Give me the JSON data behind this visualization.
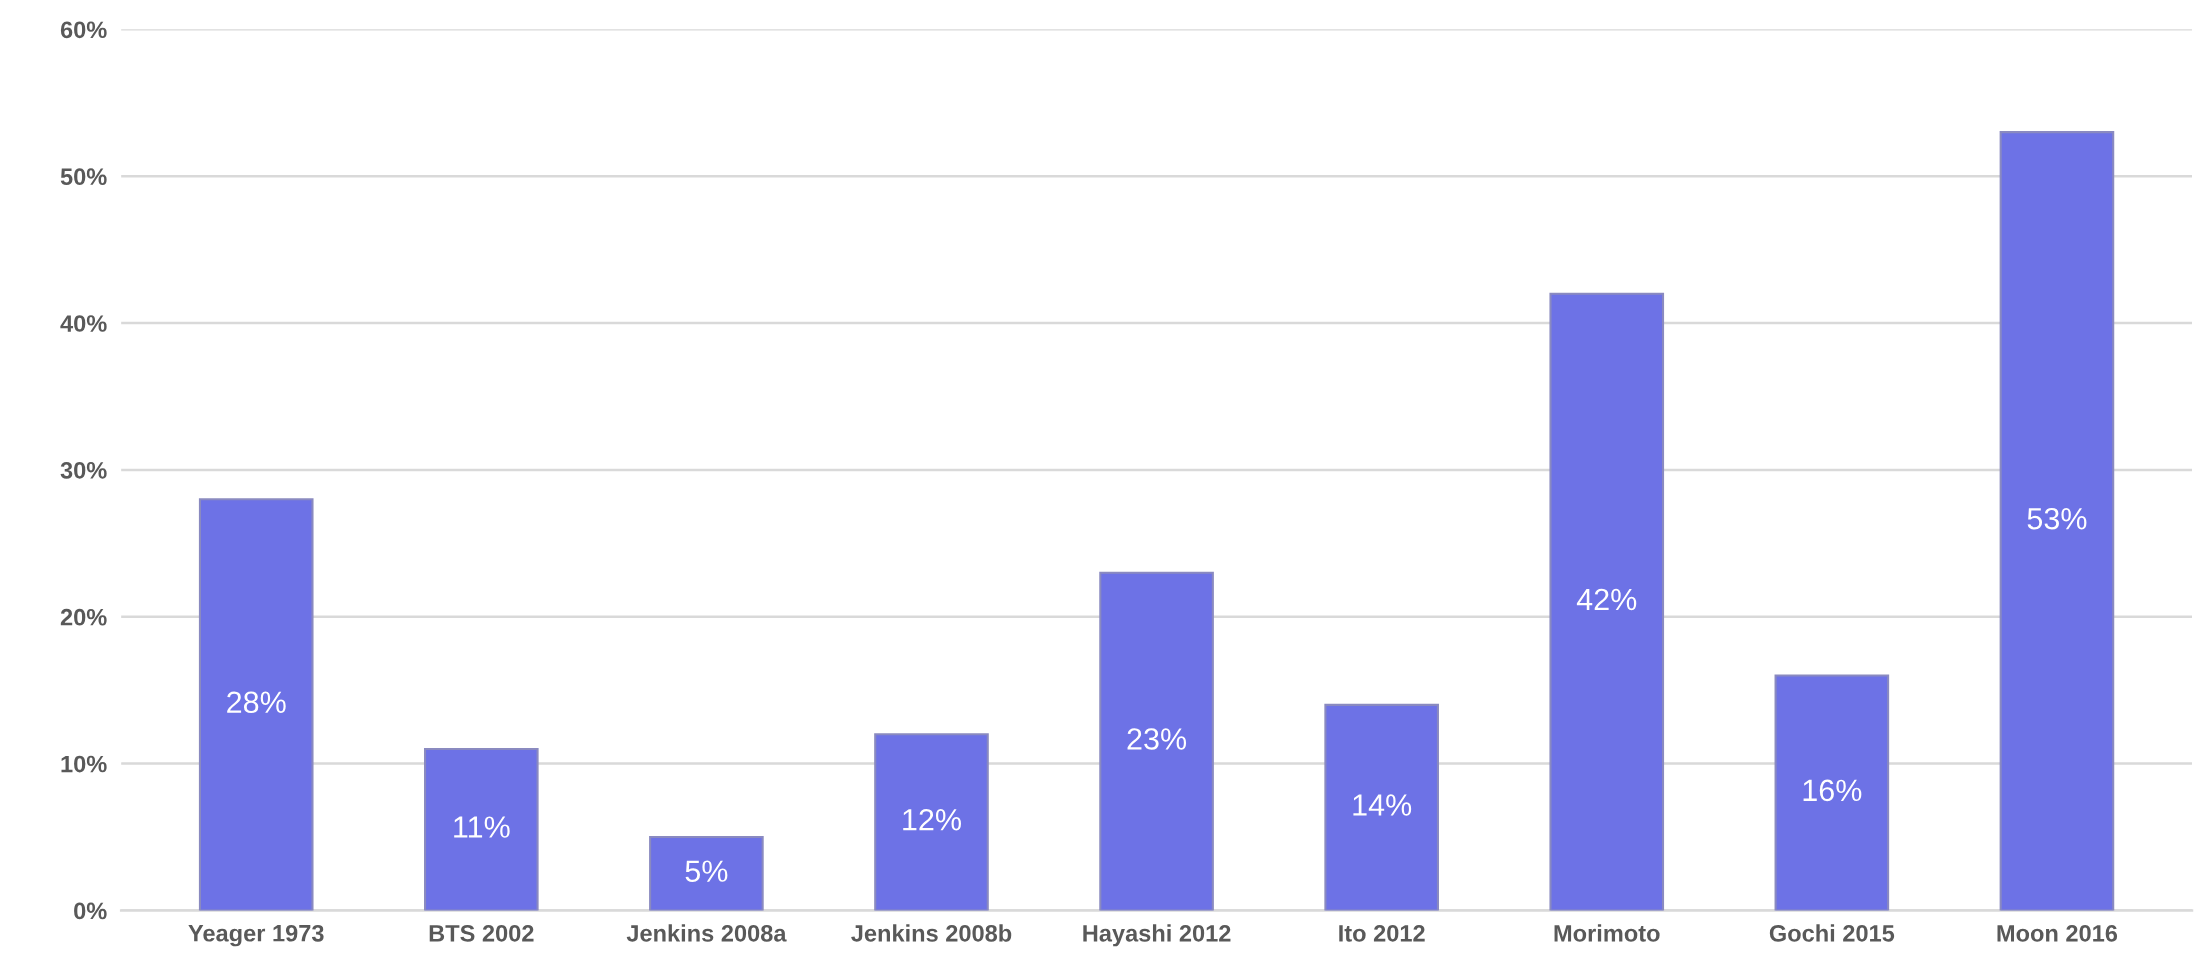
{
  "chart_data": {
    "type": "bar",
    "categories": [
      "Yeager 1973",
      "BTS 2002",
      "Jenkins 2008a",
      "Jenkins 2008b",
      "Hayashi 2012",
      "Ito 2012",
      "Morimoto",
      "Gochi 2015",
      "Moon 2016"
    ],
    "values": [
      28,
      11,
      5,
      12,
      23,
      14,
      42,
      16,
      53
    ],
    "value_labels": [
      "28%",
      "11%",
      "5%",
      "12%",
      "23%",
      "14%",
      "42%",
      "16%",
      "53%"
    ],
    "color": "#6d72e6",
    "ylim": [
      0,
      60
    ],
    "yticks": [
      {
        "value": 0,
        "label": "0%"
      },
      {
        "value": 10,
        "label": "10%"
      },
      {
        "value": 20,
        "label": "20%"
      },
      {
        "value": 30,
        "label": "30%"
      },
      {
        "value": 40,
        "label": "40%"
      },
      {
        "value": 50,
        "label": "50%"
      },
      {
        "value": 60,
        "label": "60%"
      }
    ],
    "grid": "y"
  }
}
